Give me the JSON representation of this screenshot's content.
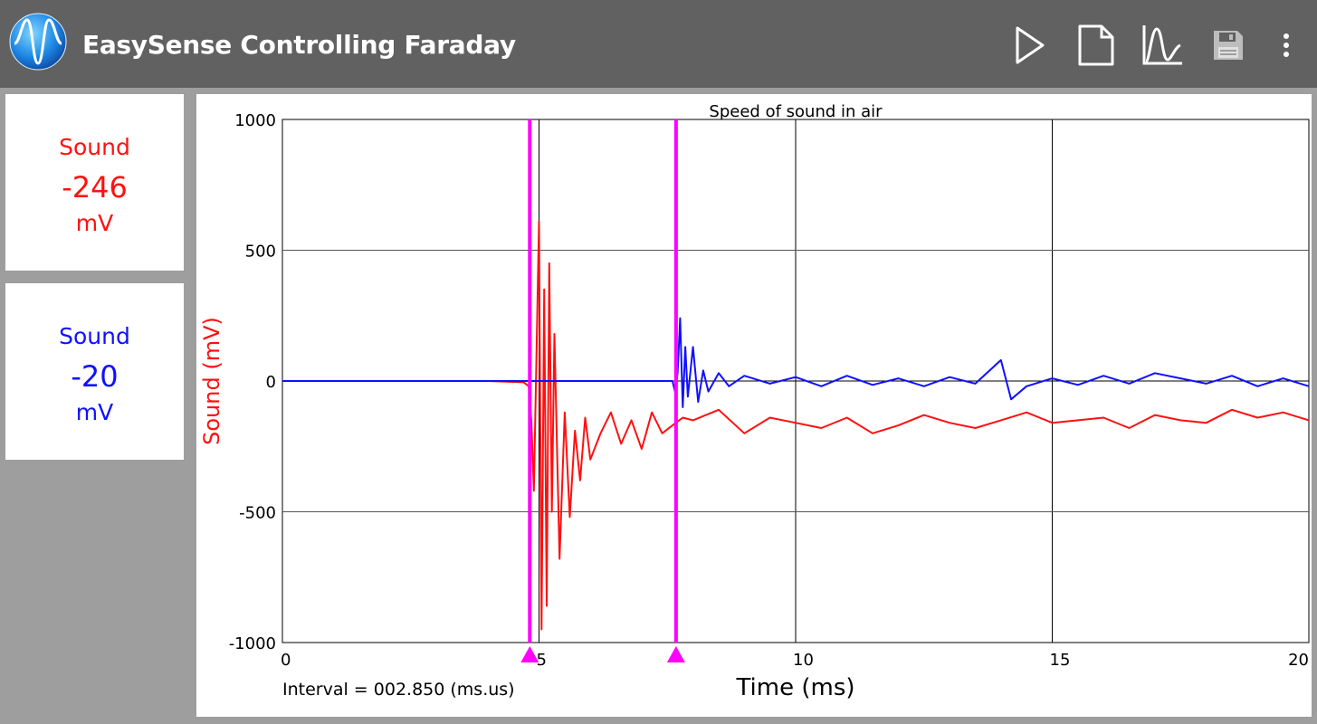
{
  "app": {
    "title": "EasySense Controlling Faraday",
    "logo_icon": "sine-wave-logo-icon"
  },
  "toolbar": [
    {
      "name": "play-button",
      "icon": "play-icon"
    },
    {
      "name": "new-file-button",
      "icon": "document-icon"
    },
    {
      "name": "graph-button",
      "icon": "waveform-icon"
    },
    {
      "name": "save-button",
      "icon": "floppy-disk-icon"
    },
    {
      "name": "overflow-menu-button",
      "icon": "more-vert-icon"
    }
  ],
  "meters": [
    {
      "label": "Sound",
      "value": "-246",
      "unit": "mV",
      "color": "#ff1010"
    },
    {
      "label": "Sound",
      "value": "-20",
      "unit": "mV",
      "color": "#1010ff"
    }
  ],
  "graph": {
    "interval_text": "Interval = 002.850 (ms.us)",
    "cursor_color": "#ff00ff",
    "cursors_x": [
      4.82,
      7.67
    ]
  },
  "chart_data": {
    "type": "line",
    "title": "Speed of sound in air",
    "xlabel": "Time (ms)",
    "ylabel": "Sound (mV)",
    "xlim": [
      0,
      20
    ],
    "ylim": [
      -1000,
      1000
    ],
    "x_ticks": [
      "0",
      "5",
      "10",
      "15",
      "20"
    ],
    "y_ticks": [
      "1000",
      "500",
      "0",
      "-500",
      "-1000"
    ],
    "grid": true,
    "series": [
      {
        "color": "#ff1010",
        "x": [
          0,
          1,
          2,
          3,
          4,
          4.7,
          4.8,
          4.85,
          4.9,
          4.95,
          5.0,
          5.05,
          5.1,
          5.15,
          5.2,
          5.25,
          5.3,
          5.4,
          5.5,
          5.6,
          5.7,
          5.8,
          5.9,
          6.0,
          6.2,
          6.4,
          6.6,
          6.8,
          7.0,
          7.2,
          7.4,
          7.6,
          7.8,
          8.0,
          8.5,
          9.0,
          9.5,
          10.0,
          10.5,
          11.0,
          11.5,
          12.0,
          12.5,
          13.0,
          13.5,
          14.0,
          14.5,
          15.0,
          15.5,
          16.0,
          16.5,
          17.0,
          17.5,
          18.0,
          18.5,
          19.0,
          19.5,
          20.0
        ],
        "y": [
          0,
          0,
          0,
          0,
          0,
          -5,
          -20,
          -150,
          -420,
          100,
          610,
          -950,
          350,
          -860,
          450,
          -500,
          180,
          -680,
          -120,
          -520,
          -190,
          -380,
          -140,
          -300,
          -200,
          -120,
          -240,
          -150,
          -260,
          -120,
          -200,
          -170,
          -140,
          -150,
          -110,
          -200,
          -140,
          -160,
          -180,
          -140,
          -200,
          -170,
          -130,
          -160,
          -180,
          -150,
          -120,
          -160,
          -150,
          -140,
          -180,
          -130,
          -150,
          -160,
          -110,
          -140,
          -120,
          -150
        ]
      },
      {
        "color": "#1010ff",
        "x": [
          0,
          1,
          2,
          3,
          4,
          5,
          6,
          7,
          7.6,
          7.65,
          7.7,
          7.75,
          7.8,
          7.85,
          7.9,
          8.0,
          8.1,
          8.2,
          8.3,
          8.5,
          8.7,
          9.0,
          9.5,
          10.0,
          10.5,
          11.0,
          11.5,
          12.0,
          12.5,
          13.0,
          13.5,
          14.0,
          14.2,
          14.5,
          15.0,
          15.5,
          16.0,
          16.5,
          17.0,
          17.5,
          18.0,
          18.5,
          19.0,
          19.5,
          20.0
        ],
        "y": [
          0,
          0,
          0,
          0,
          0,
          0,
          0,
          0,
          0,
          -40,
          30,
          240,
          -100,
          130,
          -60,
          130,
          -80,
          40,
          -40,
          30,
          -20,
          20,
          -10,
          15,
          -20,
          20,
          -15,
          10,
          -20,
          15,
          -10,
          80,
          -70,
          -20,
          10,
          -15,
          20,
          -10,
          30,
          10,
          -10,
          20,
          -20,
          10,
          -20
        ]
      }
    ]
  }
}
